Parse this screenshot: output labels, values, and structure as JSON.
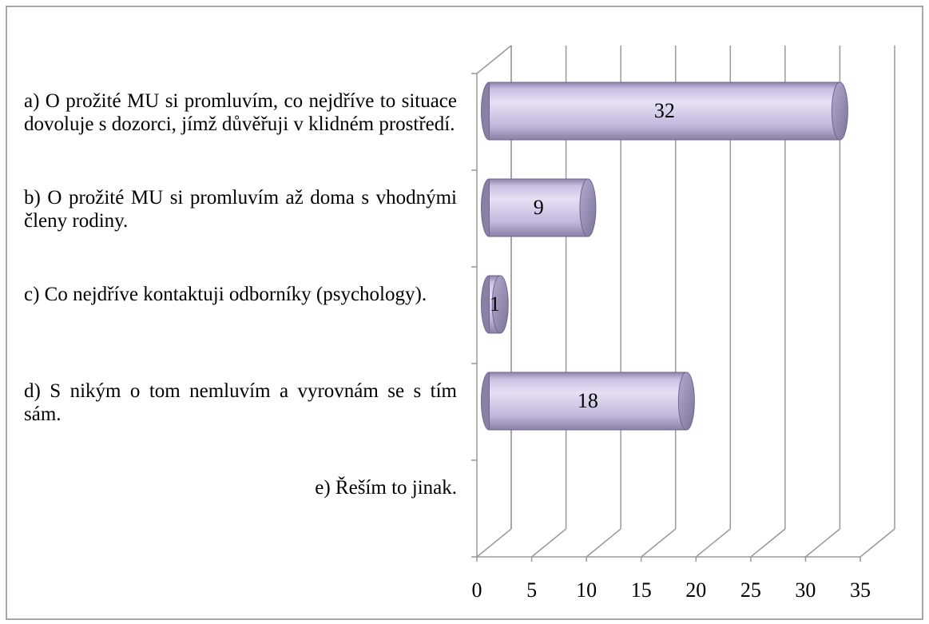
{
  "chart_data": {
    "type": "bar",
    "orientation": "horizontal",
    "style": "3d-cylinder",
    "categories": [
      "a) O prožité MU si promluvím, co nejdříve to situace dovoluje s dozorci, jímž důvěřuji v klidném prostředí.",
      "b) O prožité MU si promluvím až doma s vhodnými členy rodiny.",
      "c) Co nejdříve kontaktuji odborníky (psychology).",
      "d) S nikým o tom nemluvím a vyrovnám se s tím sám.",
      "e) Řeším to jinak."
    ],
    "values": [
      32,
      9,
      1,
      18,
      null
    ],
    "color": "#c8bfe0",
    "xlim": [
      0,
      35
    ],
    "xticks": [
      0,
      5,
      10,
      15,
      20,
      25,
      30,
      35
    ],
    "grid": true
  }
}
